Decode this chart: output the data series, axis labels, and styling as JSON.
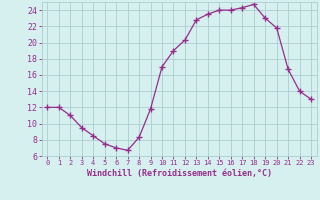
{
  "x": [
    0,
    1,
    2,
    3,
    4,
    5,
    6,
    7,
    8,
    9,
    10,
    11,
    12,
    13,
    14,
    15,
    16,
    17,
    18,
    19,
    20,
    21,
    22,
    23
  ],
  "y": [
    12,
    12,
    11,
    9.5,
    8.5,
    7.5,
    7,
    6.7,
    8.3,
    11.8,
    17,
    19,
    20.3,
    22.8,
    23.5,
    24,
    24,
    24.3,
    24.7,
    23,
    21.8,
    16.7,
    14,
    13
  ],
  "line_color": "#962d8b",
  "marker": "+",
  "marker_size": 4,
  "background_color": "#d6f0f0",
  "grid_color": "#aacece",
  "xlabel": "Windchill (Refroidissement éolien,°C)",
  "xlabel_color": "#962d8b",
  "tick_color": "#962d8b",
  "ylim": [
    6,
    25
  ],
  "xlim": [
    -0.5,
    23.5
  ],
  "yticks": [
    6,
    8,
    10,
    12,
    14,
    16,
    18,
    20,
    22,
    24
  ],
  "xticks": [
    0,
    1,
    2,
    3,
    4,
    5,
    6,
    7,
    8,
    9,
    10,
    11,
    12,
    13,
    14,
    15,
    16,
    17,
    18,
    19,
    20,
    21,
    22,
    23
  ],
  "xlabel_fontsize": 6.0,
  "tick_fontsize_x": 5.0,
  "tick_fontsize_y": 6.0
}
